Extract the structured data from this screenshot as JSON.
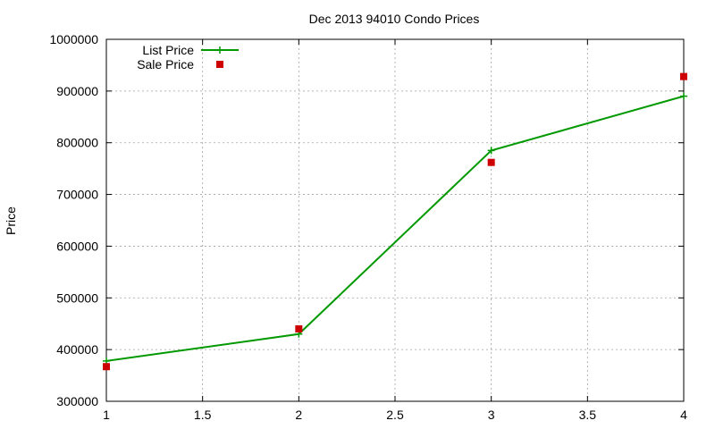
{
  "chart_data": {
    "type": "line",
    "title": "Dec 2013 94010 Condo Prices",
    "xlabel": "",
    "ylabel": "Price",
    "xlim": [
      1,
      4
    ],
    "ylim": [
      300000,
      1000000
    ],
    "x_ticks": [
      1,
      1.5,
      2,
      2.5,
      3,
      3.5,
      4
    ],
    "y_ticks": [
      300000,
      400000,
      500000,
      600000,
      700000,
      800000,
      900000,
      1000000
    ],
    "grid": true,
    "legend_position": "top-left",
    "series": [
      {
        "name": "List Price",
        "style": "line+points",
        "marker": "plus",
        "color": "#009900",
        "x": [
          1,
          2,
          3,
          4
        ],
        "values": [
          378000,
          430000,
          785000,
          890000
        ]
      },
      {
        "name": "Sale Price",
        "style": "points",
        "marker": "square",
        "color": "#cc0000",
        "x": [
          1,
          2,
          3,
          4
        ],
        "values": [
          367000,
          440000,
          762000,
          928000
        ]
      }
    ]
  }
}
